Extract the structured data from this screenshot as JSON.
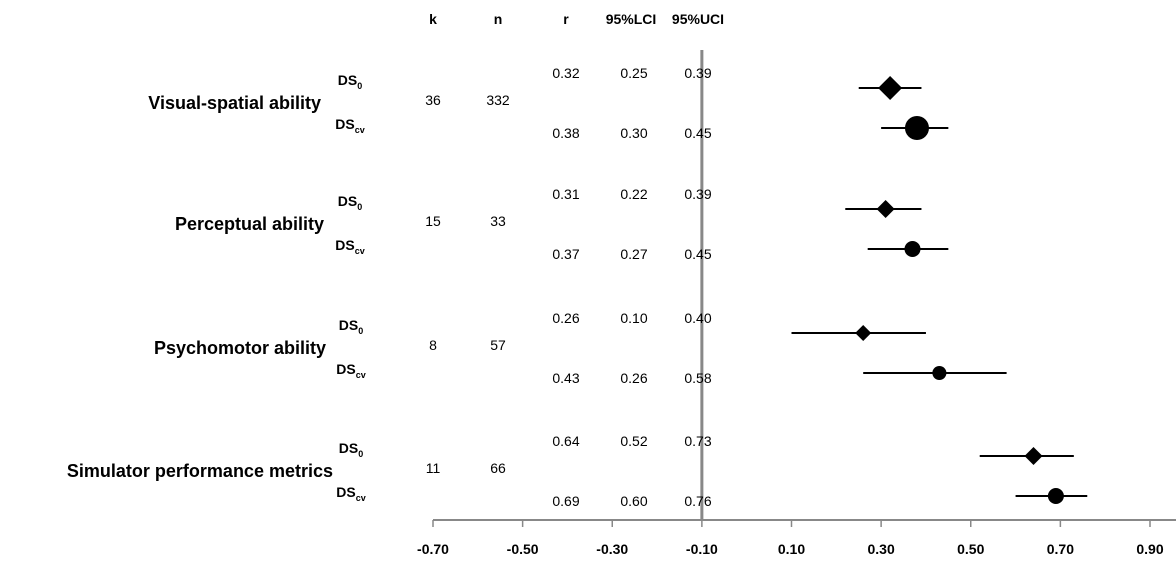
{
  "chart_data": {
    "type": "forest",
    "columns": [
      "k",
      "n",
      "r",
      "95%LCI",
      "95%UCI"
    ],
    "xlim": [
      -0.7,
      0.9
    ],
    "xticks": [
      "-0.70",
      "-0.50",
      "-0.30",
      "-0.10",
      "0.10",
      "0.30",
      "0.50",
      "0.70",
      "0.90"
    ],
    "reference_line_x": -0.1,
    "groups": [
      {
        "label": "Visual-spatial ability",
        "k": "36",
        "n": "332",
        "rows": [
          {
            "base": "DS",
            "sub": "0",
            "r": 0.32,
            "lci": 0.25,
            "uci": 0.39,
            "r_text": "0.32",
            "lci_text": "0.25",
            "uci_text": "0.39",
            "marker": "diamond",
            "size": "large"
          },
          {
            "base": "DS",
            "sub": "cv",
            "r": 0.38,
            "lci": 0.3,
            "uci": 0.45,
            "r_text": "0.38",
            "lci_text": "0.30",
            "uci_text": "0.45",
            "marker": "circle",
            "size": "large"
          }
        ]
      },
      {
        "label": "Perceptual ability",
        "k": "15",
        "n": "33",
        "rows": [
          {
            "base": "DS",
            "sub": "0",
            "r": 0.31,
            "lci": 0.22,
            "uci": 0.39,
            "r_text": "0.31",
            "lci_text": "0.22",
            "uci_text": "0.39",
            "marker": "diamond",
            "size": "medium"
          },
          {
            "base": "DS",
            "sub": "cv",
            "r": 0.37,
            "lci": 0.27,
            "uci": 0.45,
            "r_text": "0.37",
            "lci_text": "0.27",
            "uci_text": "0.45",
            "marker": "circle",
            "size": "medium"
          }
        ]
      },
      {
        "label": "Psychomotor ability",
        "k": "8",
        "n": "57",
        "rows": [
          {
            "base": "DS",
            "sub": "0",
            "r": 0.26,
            "lci": 0.1,
            "uci": 0.4,
            "r_text": "0.26",
            "lci_text": "0.10",
            "uci_text": "0.40",
            "marker": "diamond",
            "size": "small"
          },
          {
            "base": "DS",
            "sub": "cv",
            "r": 0.43,
            "lci": 0.26,
            "uci": 0.58,
            "r_text": "0.43",
            "lci_text": "0.26",
            "uci_text": "0.58",
            "marker": "circle",
            "size": "small"
          }
        ]
      },
      {
        "label": "Simulator performance metrics",
        "k": "11",
        "n": "66",
        "rows": [
          {
            "base": "DS",
            "sub": "0",
            "r": 0.64,
            "lci": 0.52,
            "uci": 0.73,
            "r_text": "0.64",
            "lci_text": "0.52",
            "uci_text": "0.73",
            "marker": "diamond",
            "size": "medium"
          },
          {
            "base": "DS",
            "sub": "cv",
            "r": 0.69,
            "lci": 0.6,
            "uci": 0.76,
            "r_text": "0.69",
            "lci_text": "0.60",
            "uci_text": "0.76",
            "marker": "circle",
            "size": "medium"
          }
        ]
      }
    ]
  }
}
